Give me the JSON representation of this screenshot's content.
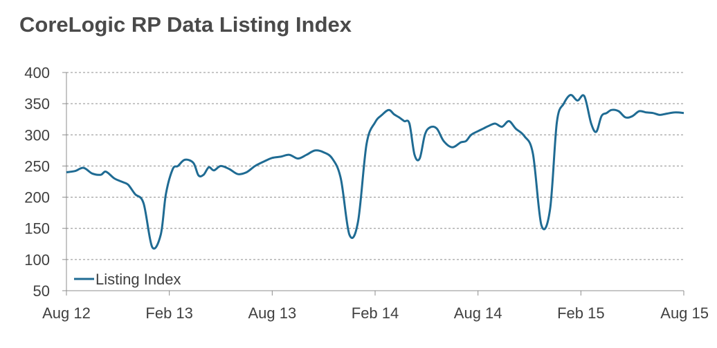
{
  "chart_data": {
    "type": "line",
    "title": "CoreLogic RP Data Listing Index",
    "xlabel": "",
    "ylabel": "",
    "ylim": [
      50,
      400
    ],
    "yticks": [
      50,
      100,
      150,
      200,
      250,
      300,
      350,
      400
    ],
    "xticks": [
      "Aug 12",
      "Feb 13",
      "Aug 13",
      "Feb 14",
      "Aug 14",
      "Feb 15",
      "Aug 15"
    ],
    "xlim": [
      0,
      36
    ],
    "grid": "horizontal-dashed",
    "legend_position": "bottom-left",
    "line_color": "#1f6b93",
    "series": [
      {
        "name": "Listing Index",
        "x": [
          0,
          0.5,
          1,
          1.5,
          2,
          2.3,
          2.8,
          3.3,
          3.6,
          4,
          4.5,
          5,
          5.5,
          5.8,
          6.2,
          6.5,
          6.9,
          7.4,
          7.7,
          8,
          8.3,
          8.6,
          9,
          9.5,
          10,
          10.5,
          11,
          11.5,
          12,
          12.5,
          13,
          13.5,
          14,
          14.5,
          15,
          15.5,
          16,
          16.5,
          17,
          17.5,
          18,
          18.4,
          18.8,
          19.1,
          19.4,
          19.7,
          20,
          20.3,
          20.6,
          20.9,
          21.2,
          21.6,
          22,
          22.5,
          23,
          23.3,
          23.6,
          24,
          24.3,
          24.6,
          25,
          25.4,
          25.8,
          26.2,
          26.7,
          27.2,
          27.7,
          28.2,
          28.6,
          29,
          29.4,
          29.8,
          30.2,
          30.6,
          30.9,
          31.2,
          31.5,
          31.8,
          32.2,
          32.6,
          33,
          33.4,
          33.8,
          34.2,
          34.6,
          35,
          35.5,
          36
        ],
        "values": [
          240,
          242,
          247,
          238,
          236,
          241,
          230,
          224,
          220,
          205,
          190,
          120,
          140,
          205,
          245,
          250,
          260,
          255,
          235,
          236,
          248,
          243,
          250,
          245,
          237,
          240,
          250,
          257,
          263,
          265,
          268,
          262,
          268,
          275,
          272,
          262,
          230,
          140,
          160,
          285,
          320,
          332,
          340,
          333,
          328,
          322,
          318,
          268,
          262,
          300,
          312,
          310,
          290,
          280,
          288,
          290,
          300,
          306,
          310,
          314,
          318,
          313,
          322,
          310,
          298,
          270,
          155,
          180,
          320,
          350,
          364,
          355,
          362,
          318,
          305,
          330,
          335,
          340,
          338,
          328,
          330,
          338,
          336,
          335,
          332,
          334,
          336,
          335
        ]
      }
    ]
  }
}
